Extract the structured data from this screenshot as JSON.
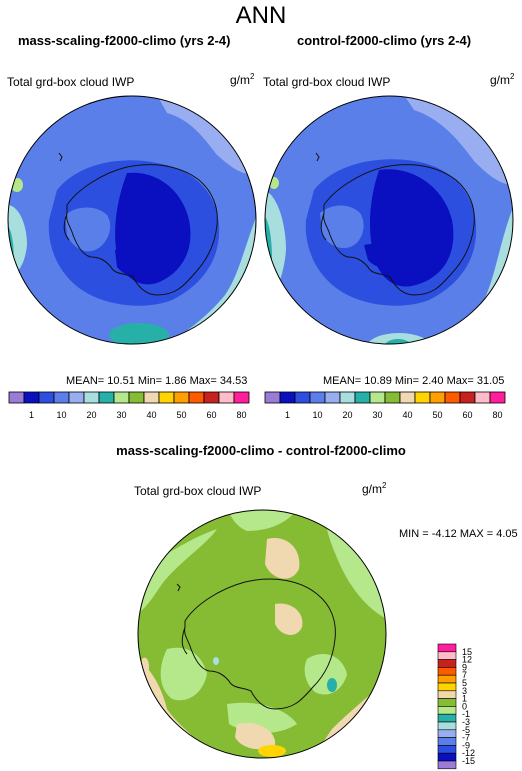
{
  "page": {
    "title": "ANN"
  },
  "panels": [
    {
      "title": "mass-scaling-f2000-climo (yrs 2-4)",
      "variable": "Total grd-box cloud IWP",
      "units_base": "g/m",
      "units_exp": "2",
      "stats": {
        "mean_label": "MEAN=",
        "mean": "10.51",
        "min_label": "Min=",
        "min": "1.86",
        "max_label": "Max=",
        "max": "34.53"
      }
    },
    {
      "title": "control-f2000-climo (yrs 2-4)",
      "variable": "Total grd-box cloud IWP",
      "units_base": "g/m",
      "units_exp": "2",
      "stats": {
        "mean_label": "MEAN=",
        "mean": "10.89",
        "min_label": "Min=",
        "min": "2.40",
        "max_label": "Max=",
        "max": "31.05"
      }
    }
  ],
  "top_colorbar": {
    "colors": [
      "#9b7bd8",
      "#0a0fbf",
      "#2c4fe0",
      "#5b7fe8",
      "#98aef0",
      "#a8dede",
      "#26b0a8",
      "#b5e88a",
      "#86bc34",
      "#f0d8b0",
      "#ffd400",
      "#ffa000",
      "#ff5a00",
      "#c8221e",
      "#ffbcc8",
      "#ff1e9c"
    ],
    "labels": [
      "1",
      "10",
      "20",
      "30",
      "40",
      "50",
      "60",
      "80"
    ]
  },
  "diff_panel": {
    "title": "mass-scaling-f2000-climo - control-f2000-climo",
    "variable": "Total grd-box cloud IWP",
    "units_base": "g/m",
    "units_exp": "2",
    "stats": {
      "min_label": "MIN =",
      "min": "-4.12",
      "max_label": "MAX =",
      "max": "4.05"
    }
  },
  "diff_colorbar": {
    "colors": [
      "#ff1e9c",
      "#ffbcc8",
      "#c8221e",
      "#ff5a00",
      "#ffa000",
      "#ffd400",
      "#f0d8b0",
      "#86bc34",
      "#b5e88a",
      "#26b0a8",
      "#a8dede",
      "#98aef0",
      "#5b7fe8",
      "#2c4fe0",
      "#0a0fbf",
      "#9b7bd8"
    ],
    "labels": [
      "15",
      "12",
      "9",
      "7",
      "5",
      "3",
      "1",
      "0",
      "-1",
      "-3",
      "-5",
      "-7",
      "-9",
      "-12",
      "-15"
    ]
  }
}
